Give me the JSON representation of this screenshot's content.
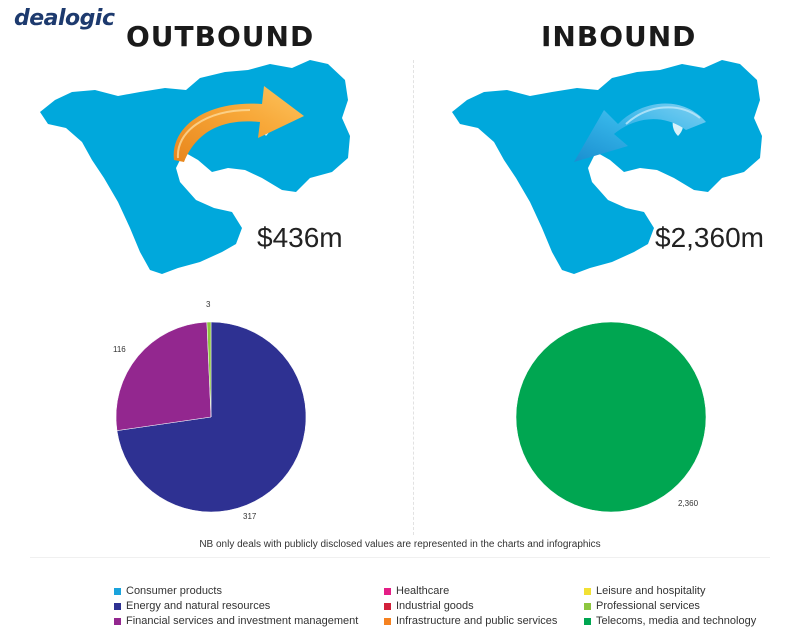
{
  "brand": {
    "logo": "dealogic"
  },
  "panels": {
    "outbound": {
      "heading": "OUTBOUND",
      "total": "$436m",
      "map_color": "#00a8dc",
      "arrow_color": "#f5a02a"
    },
    "inbound": {
      "heading": "INBOUND",
      "total": "$2,360m",
      "map_color": "#f9ae3c",
      "arrow_color": "#29a8e0"
    }
  },
  "note": "NB only deals with publicly disclosed values are represented in the charts and infographics",
  "legend": [
    {
      "label": "Consumer products",
      "color": "#1aa3dc"
    },
    {
      "label": "Healthcare",
      "color": "#e41e86"
    },
    {
      "label": "Leisure and hospitality",
      "color": "#f2e134"
    },
    {
      "label": "Energy and natural resources",
      "color": "#2e3192"
    },
    {
      "label": "Industrial goods",
      "color": "#d2203a"
    },
    {
      "label": "Professional services",
      "color": "#8dc63f"
    },
    {
      "label": "Financial services and investment management",
      "color": "#93278f"
    },
    {
      "label": "Infrastructure and public services",
      "color": "#f58220"
    },
    {
      "label": "Telecoms, media and technology",
      "color": "#00a651"
    }
  ],
  "chart_data": [
    {
      "type": "pie",
      "total_label": "$436m",
      "slices": [
        {
          "category": "Energy and natural resources",
          "value": 317,
          "label": "317",
          "color": "#2e3192"
        },
        {
          "category": "Financial services and investment management",
          "value": 116,
          "label": "116",
          "color": "#93278f"
        },
        {
          "category": "Professional services",
          "value": 3,
          "label": "3",
          "color": "#8dc63f"
        }
      ]
    },
    {
      "type": "pie",
      "total_label": "$2,360m",
      "slices": [
        {
          "category": "Telecoms, media and technology",
          "value": 2360,
          "label": "2,360",
          "color": "#00a651"
        }
      ]
    }
  ]
}
